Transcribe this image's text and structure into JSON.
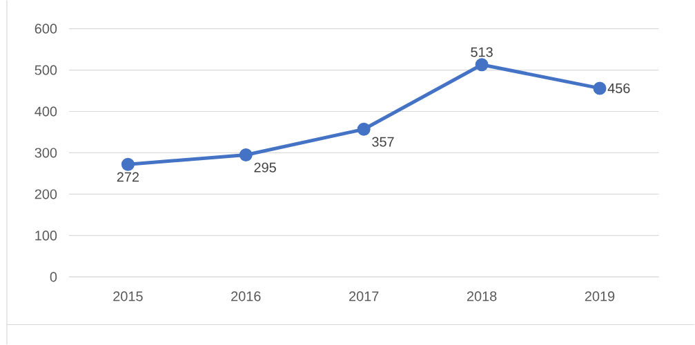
{
  "chart_data": {
    "type": "line",
    "categories": [
      "2015",
      "2016",
      "2017",
      "2018",
      "2019"
    ],
    "values": [
      272,
      295,
      357,
      513,
      456
    ],
    "color": "#4472c4",
    "marker": "circle",
    "line_style": "solid",
    "ylim": [
      0,
      600
    ],
    "yticks": [
      0,
      100,
      200,
      300,
      400,
      500,
      600
    ],
    "grid": "y",
    "data_labels": true
  }
}
